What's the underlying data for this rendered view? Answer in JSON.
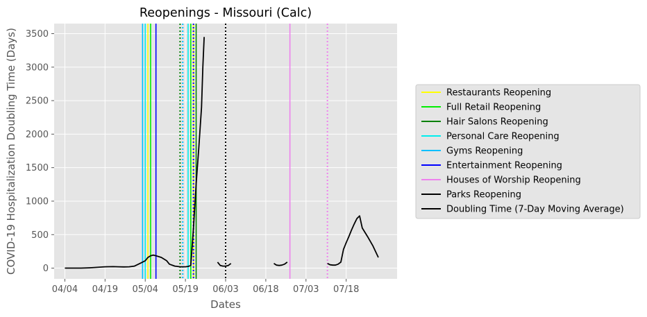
{
  "chart_data": {
    "type": "line",
    "title": "Reopenings - Missouri (Calc)",
    "xlabel": "Dates",
    "ylabel": "COVID-19 Hospitalization Doubling Time (Days)",
    "x_start": "04/04",
    "xlim": [
      -4,
      124
    ],
    "ylim": [
      -160,
      3650
    ],
    "x_ticks": [
      {
        "day": 0,
        "label": "04/04"
      },
      {
        "day": 15,
        "label": "04/19"
      },
      {
        "day": 30,
        "label": "05/04"
      },
      {
        "day": 45,
        "label": "05/19"
      },
      {
        "day": 60,
        "label": "06/03"
      },
      {
        "day": 75,
        "label": "06/18"
      },
      {
        "day": 90,
        "label": "07/03"
      },
      {
        "day": 105,
        "label": "07/18"
      }
    ],
    "y_ticks": [
      0,
      500,
      1000,
      1500,
      2000,
      2500,
      3000,
      3500
    ],
    "grid": true,
    "legend_position": "outside-right",
    "series": [
      {
        "name": "Doubling Time (7-Day Moving Average)",
        "color": "#000000",
        "segments": [
          [
            [
              0,
              0
            ],
            [
              3,
              0
            ],
            [
              6,
              0
            ],
            [
              9,
              5
            ],
            [
              12,
              12
            ],
            [
              15,
              20
            ],
            [
              18,
              22
            ],
            [
              20,
              20
            ],
            [
              22,
              18
            ],
            [
              24,
              20
            ],
            [
              26,
              30
            ],
            [
              28,
              70
            ],
            [
              30,
              110
            ],
            [
              31,
              160
            ],
            [
              32,
              185
            ],
            [
              33,
              195
            ],
            [
              34,
              185
            ],
            [
              36,
              160
            ],
            [
              38,
              110
            ],
            [
              39,
              60
            ],
            [
              41,
              30
            ],
            [
              43,
              20
            ],
            [
              45,
              20
            ],
            [
              46,
              25
            ],
            [
              47,
              40
            ],
            [
              48,
              600
            ],
            [
              49,
              1250
            ],
            [
              50,
              1800
            ],
            [
              51,
              2400
            ],
            [
              51.5,
              3000
            ],
            [
              52,
              3450
            ]
          ],
          [
            [
              57,
              90
            ],
            [
              58,
              40
            ],
            [
              59,
              30
            ],
            [
              60,
              30
            ],
            [
              61,
              40
            ],
            [
              62,
              70
            ]
          ],
          [
            [
              78,
              70
            ],
            [
              79,
              45
            ],
            [
              80,
              40
            ],
            [
              81,
              45
            ],
            [
              82,
              60
            ],
            [
              83,
              90
            ]
          ],
          [
            [
              98,
              70
            ],
            [
              99,
              50
            ],
            [
              100,
              45
            ],
            [
              101,
              45
            ],
            [
              102,
              60
            ],
            [
              103,
              90
            ],
            [
              104,
              280
            ],
            [
              105,
              380
            ],
            [
              106,
              470
            ],
            [
              107,
              570
            ],
            [
              108,
              660
            ],
            [
              109,
              740
            ],
            [
              110,
              780
            ],
            [
              111,
              600
            ],
            [
              113,
              470
            ],
            [
              115,
              330
            ],
            [
              117,
              160
            ]
          ]
        ]
      }
    ],
    "reopenings": [
      {
        "name": "Restaurants Reopening",
        "color": "#ffff00",
        "style": "solid",
        "x": [
          31,
          48
        ]
      },
      {
        "name": "Full Retail Reopening",
        "color": "#00ee00",
        "style": "solid",
        "x": [
          32,
          47
        ]
      },
      {
        "name": "Hair Salons Reopening",
        "color": "#008000",
        "style": "solid",
        "x": [
          49
        ]
      },
      {
        "name": "Personal Care Reopening",
        "color": "#00eeee",
        "style": "solid",
        "x": [
          30,
          46
        ]
      },
      {
        "name": "Gyms Reopening",
        "color": "#00bfff",
        "style": "solid",
        "x": [
          29
        ]
      },
      {
        "name": "Entertainment Reopening",
        "color": "#0000ff",
        "style": "solid",
        "x": [
          34
        ]
      },
      {
        "name": "Houses of Worship Reopening",
        "color": "#ee82ee",
        "style": "solid",
        "x": [
          84
        ]
      },
      {
        "name": "Parks Reopening",
        "color": "#000000",
        "style": "solid",
        "x": []
      }
    ],
    "dotted_lines": [
      {
        "x": 43,
        "color": "#008000"
      },
      {
        "x": 44,
        "color": "#00bfff"
      },
      {
        "x": 48,
        "color": "#0000ff"
      },
      {
        "x": 60,
        "color": "#000000"
      },
      {
        "x": 98,
        "color": "#ee82ee"
      }
    ]
  }
}
